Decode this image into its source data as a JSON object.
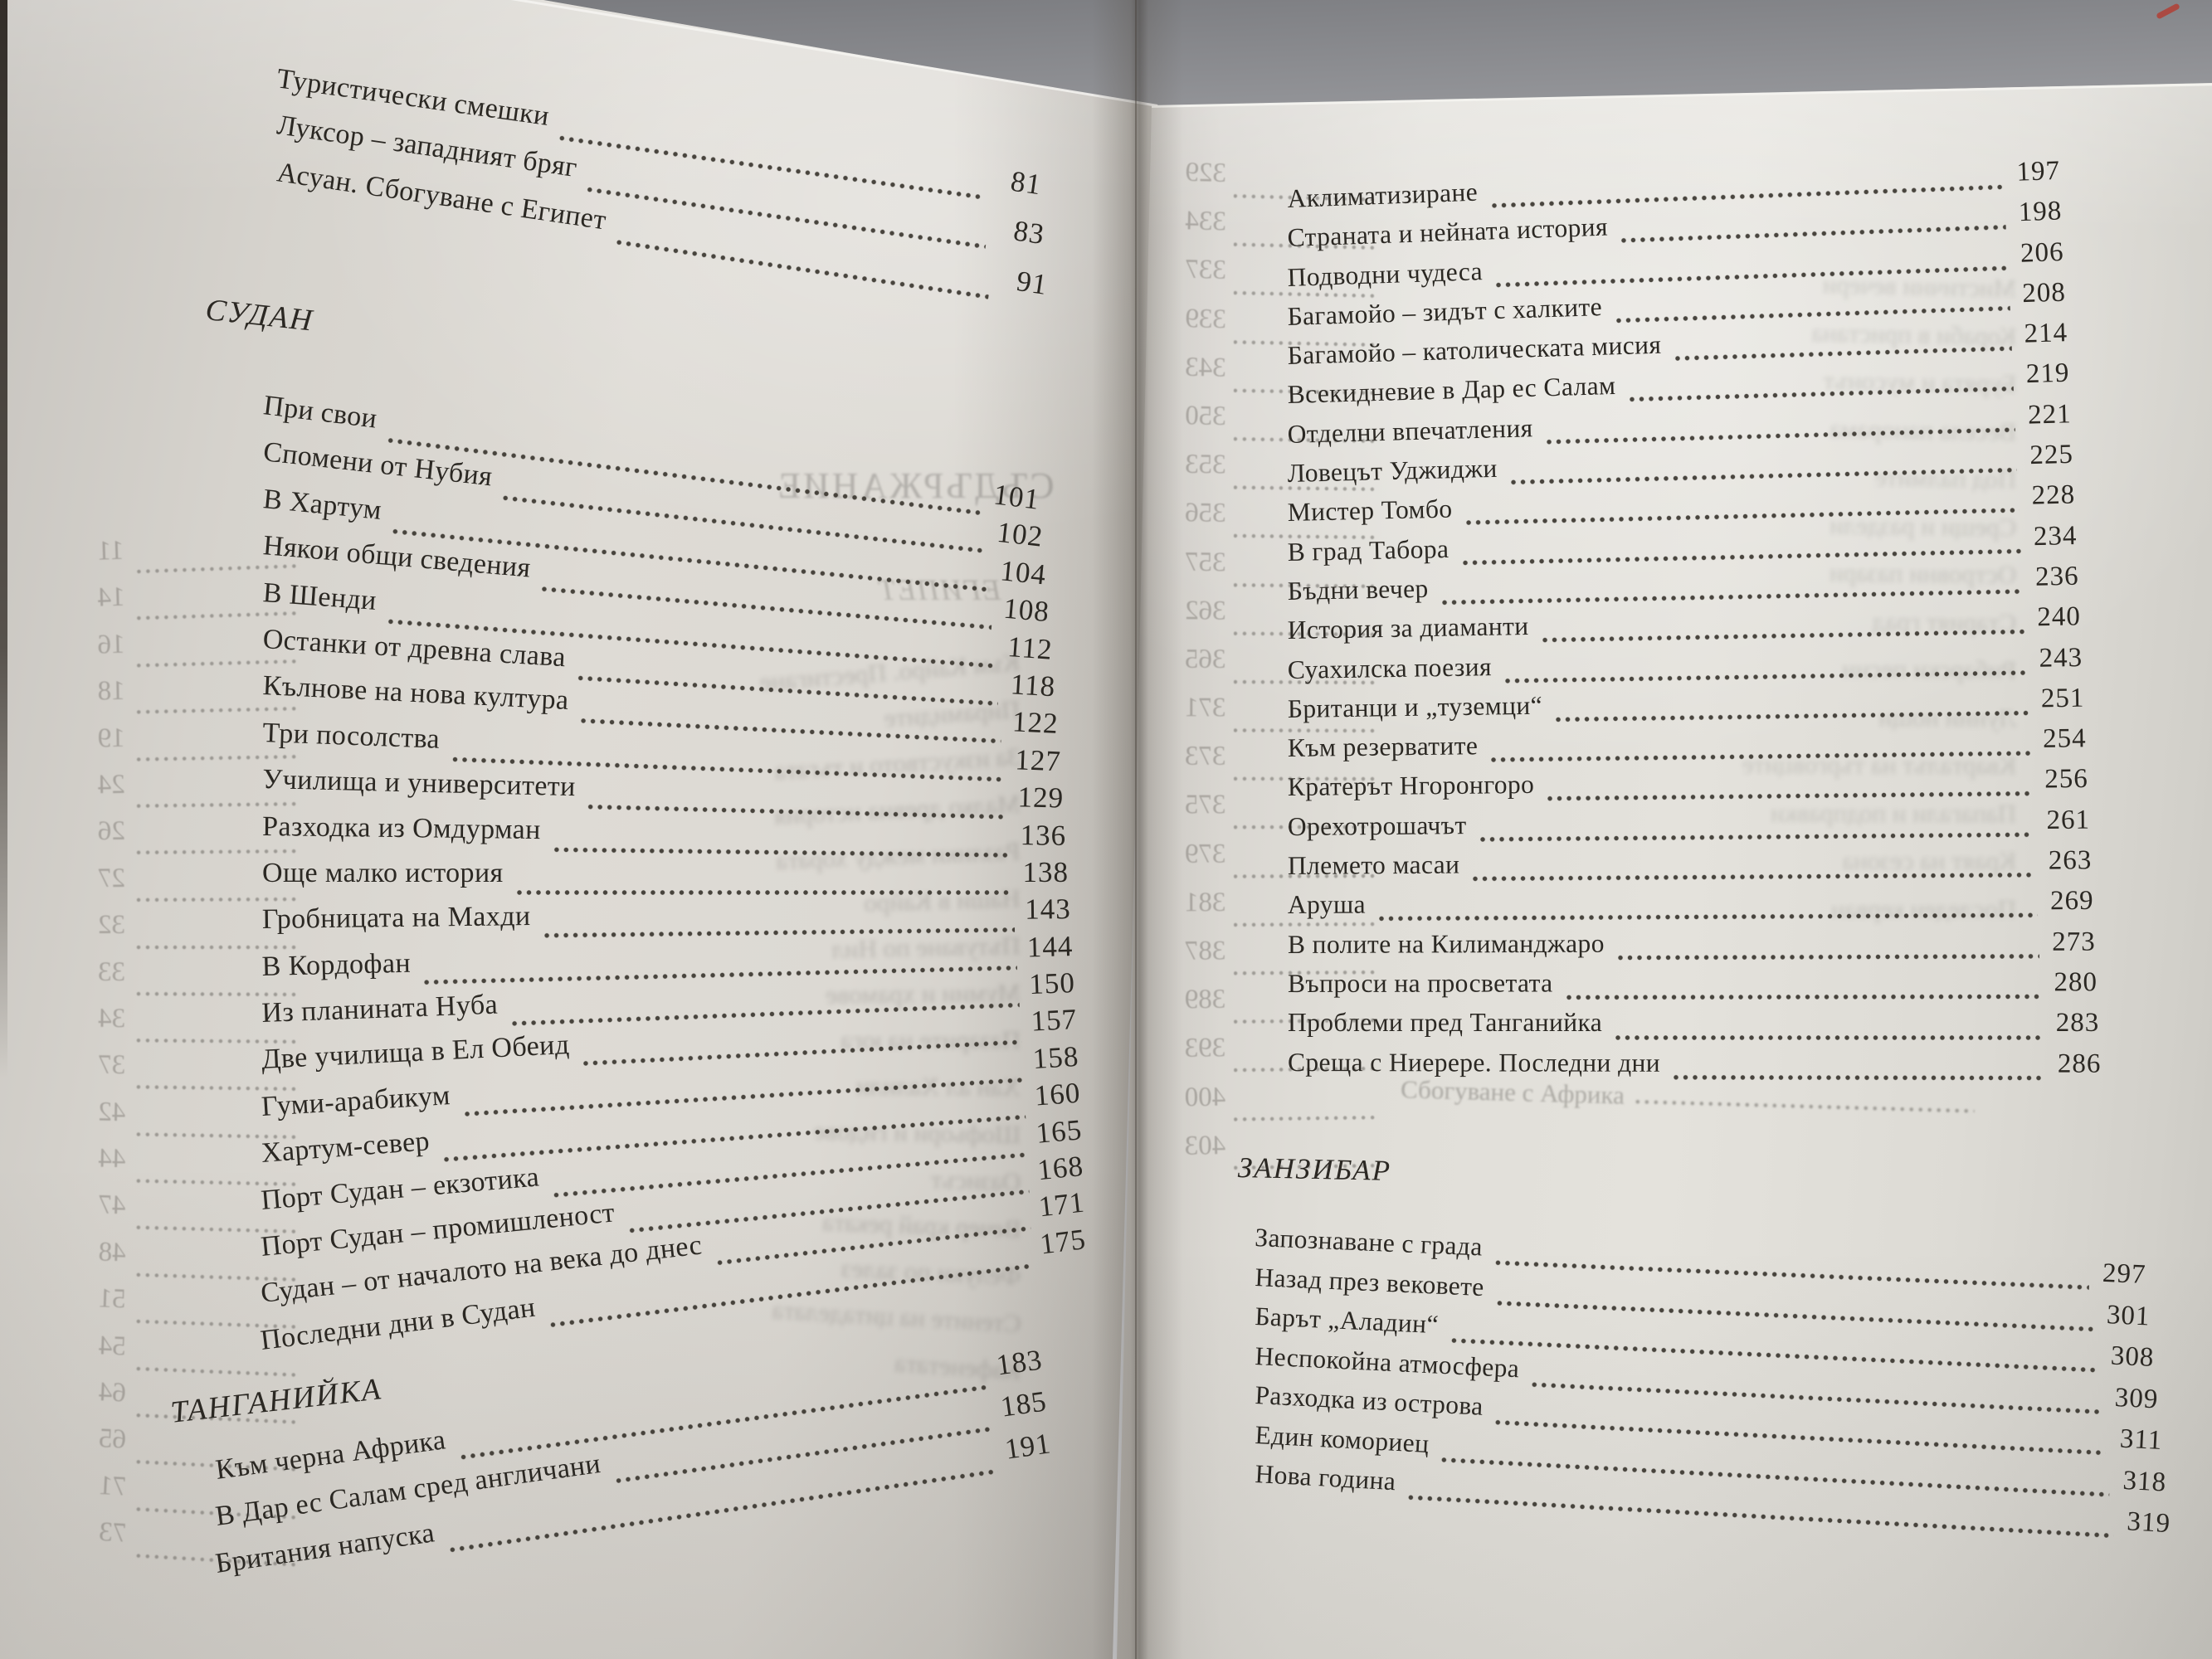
{
  "accent_red": "#b43b30",
  "paper_color": "#dedbd5",
  "background_color": "#a3a4a8",
  "left_page": {
    "egypt_entries": [
      {
        "title": "Туристически смешки",
        "page": "81"
      },
      {
        "title": "Луксор – западният бряг",
        "page": "83"
      },
      {
        "title": "Асуан. Сбогуване с Египет",
        "page": "91"
      }
    ],
    "sudan_header": "СУДАН",
    "sudan_entries": [
      {
        "title": "При свои",
        "page": "101"
      },
      {
        "title": "Спомени от Нубия",
        "page": "102"
      },
      {
        "title": "В Хартум",
        "page": "104"
      },
      {
        "title": "Някои общи сведения",
        "page": "108"
      },
      {
        "title": "В Шенди",
        "page": "112"
      },
      {
        "title": "Останки от древна слава",
        "page": "118"
      },
      {
        "title": "Кълнове на нова култура",
        "page": "122"
      },
      {
        "title": "Три посолства",
        "page": "127"
      },
      {
        "title": "Училища и университети",
        "page": "129"
      },
      {
        "title": "Разходка из Омдурман",
        "page": "136"
      },
      {
        "title": "Още малко история",
        "page": "138"
      },
      {
        "title": "Гробницата на Махди",
        "page": "143"
      },
      {
        "title": "В Кордофан",
        "page": "144"
      },
      {
        "title": "Из планината Нуба",
        "page": "150"
      },
      {
        "title": "Две училища в Ел Обеид",
        "page": "157"
      },
      {
        "title": "Гуми-арабикум",
        "page": "158"
      },
      {
        "title": "Хартум-север",
        "page": "160"
      },
      {
        "title": "Порт Судан – екзотика",
        "page": "165"
      },
      {
        "title": "Порт Судан – промишленост",
        "page": "168"
      },
      {
        "title": "Судан – от началото на века до днес",
        "page": "171"
      },
      {
        "title": "Последни дни в Судан",
        "page": "175"
      }
    ],
    "tanganyika_header": "ТАНГАНИЙКА",
    "tanganyika_entries": [
      {
        "title": "Към черна Африка",
        "page": "183"
      },
      {
        "title": "В Дар ес Салам сред англичани",
        "page": "185"
      },
      {
        "title": "Британия напуска",
        "page": "191"
      }
    ]
  },
  "right_page": {
    "tanganyika_cont_entries": [
      {
        "title": "Аклиматизиране",
        "page": "197"
      },
      {
        "title": "Страната и нейната история",
        "page": "198"
      },
      {
        "title": "Подводни чудеса",
        "page": "206"
      },
      {
        "title": "Багамойо – зидът с халките",
        "page": "208"
      },
      {
        "title": "Багамойо – католическата мисия",
        "page": "214"
      },
      {
        "title": "Всекидневие в Дар ес Салам",
        "page": "219"
      },
      {
        "title": "Отделни впечатления",
        "page": "221"
      },
      {
        "title": "Ловецът Уджиджи",
        "page": "225"
      },
      {
        "title": "Мистер Томбо",
        "page": "228"
      },
      {
        "title": "В град Табора",
        "page": "234"
      },
      {
        "title": "Бъдни вечер",
        "page": "236"
      },
      {
        "title": "История за диаманти",
        "page": "240"
      },
      {
        "title": "Суахилска поезия",
        "page": "243"
      },
      {
        "title": "Британци и „туземци“",
        "page": "251"
      },
      {
        "title": "Към резерватите",
        "page": "254"
      },
      {
        "title": "Кратерът Нгоронгоро",
        "page": "256"
      },
      {
        "title": "Орехотрошачът",
        "page": "261"
      },
      {
        "title": "Племето масаи",
        "page": "263"
      },
      {
        "title": "Аруша",
        "page": "269"
      },
      {
        "title": "В полите на Килиманджаро",
        "page": "273"
      },
      {
        "title": "Въпроси на просветата",
        "page": "280"
      },
      {
        "title": "Проблеми пред Танганийка",
        "page": "283"
      },
      {
        "title": "Среща с Ниерере. Последни дни",
        "page": "286"
      }
    ],
    "zanzibar_header": "ЗАНЗИБАР",
    "zanzibar_entries": [
      {
        "title": "Запознаване с града",
        "page": "297"
      },
      {
        "title": "Назад през вековете",
        "page": "301"
      },
      {
        "title": "Барът „Аладин“",
        "page": "308"
      },
      {
        "title": "Неспокойна атмосфера",
        "page": "309"
      },
      {
        "title": "Разходка из острова",
        "page": "311"
      },
      {
        "title": "Един комориец",
        "page": "318"
      },
      {
        "title": "Нова година",
        "page": "319"
      }
    ]
  },
  "bleed": {
    "left_title": "СЪДЪРЖАНИЕ",
    "left_subtitle": "ЕГИПЕТ",
    "left_numbers": [
      "11",
      "14",
      "16",
      "18",
      "19",
      "24",
      "26",
      "27",
      "32",
      "33",
      "34",
      "37",
      "42",
      "44",
      "47",
      "48",
      "51",
      "54",
      "64",
      "65",
      "71",
      "73"
    ],
    "left_lines": [
      "Към Кайро. Престигане",
      "Пирамидите",
      "За изкуството и тъгата",
      "Малко древна история",
      "Разлики между хората",
      "Наши в Кайро",
      "Пътуване по Нил",
      "Мумии и храмове",
      "Пазарите на юга",
      "Хан ал Халили",
      "Шофьори и гидове",
      "Оазисът",
      "Вечер край реката",
      "Фелуки по залез",
      "Стените на цитаделата",
      "Кафенетата"
    ],
    "right_numbers": [
      "329",
      "334",
      "337",
      "339",
      "343",
      "350",
      "353",
      "356",
      "357",
      "362",
      "365",
      "371",
      "373",
      "375",
      "379",
      "381",
      "387",
      "389",
      "393",
      "400",
      "403"
    ],
    "right_lines": [
      "Мистични вечери",
      "Кораби в пристана",
      "Бурята и мусонът",
      "Весела панорама",
      "Под палмите",
      "Срещи и раздели",
      "Островни пазари",
      "Старият град",
      "Рибарски песни",
      "Лунни нощи",
      "Кварталът на търговците",
      "Папагали и подправки",
      "Краят на сезона",
      "Последен керван"
    ],
    "right_footer": "Сбогуване с Африка"
  }
}
